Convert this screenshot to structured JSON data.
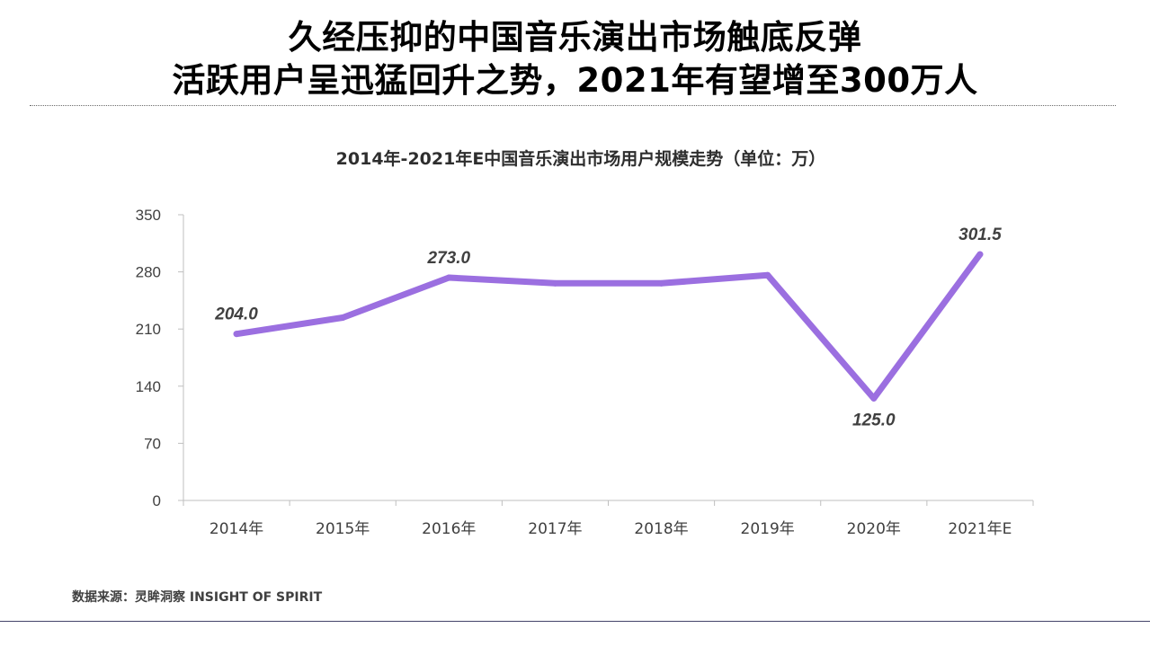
{
  "header": {
    "title_line_1": "久经压抑的中国音乐演出市场触底反弹",
    "title_line_2": "活跃用户呈迅猛回升之势，2021年有望增至300万人"
  },
  "footer": {
    "source": "数据来源：灵眸洞察 INSIGHT OF SPIRIT"
  },
  "chart_data": {
    "type": "line",
    "title": "2014年-2021年E中国音乐演出市场用户规模走势（单位：万）",
    "xlabel": "",
    "ylabel": "",
    "categories": [
      "2014年",
      "2015年",
      "2016年",
      "2017年",
      "2018年",
      "2019年",
      "2020年",
      "2021年E"
    ],
    "series": [
      {
        "values": [
          204.0,
          224.0,
          273.0,
          266.0,
          266.0,
          276.0,
          125.0,
          301.5
        ],
        "color": "#9b6fe0"
      }
    ],
    "data_labels": [
      {
        "index": 0,
        "text": "204.0",
        "placement": "above"
      },
      {
        "index": 2,
        "text": "273.0",
        "placement": "above"
      },
      {
        "index": 6,
        "text": "125.0",
        "placement": "below"
      },
      {
        "index": 7,
        "text": "301.5",
        "placement": "above"
      }
    ],
    "ylim": [
      0,
      350
    ],
    "yticks": [
      0,
      70,
      140,
      210,
      280,
      350
    ],
    "grid": false,
    "legend": "none"
  }
}
